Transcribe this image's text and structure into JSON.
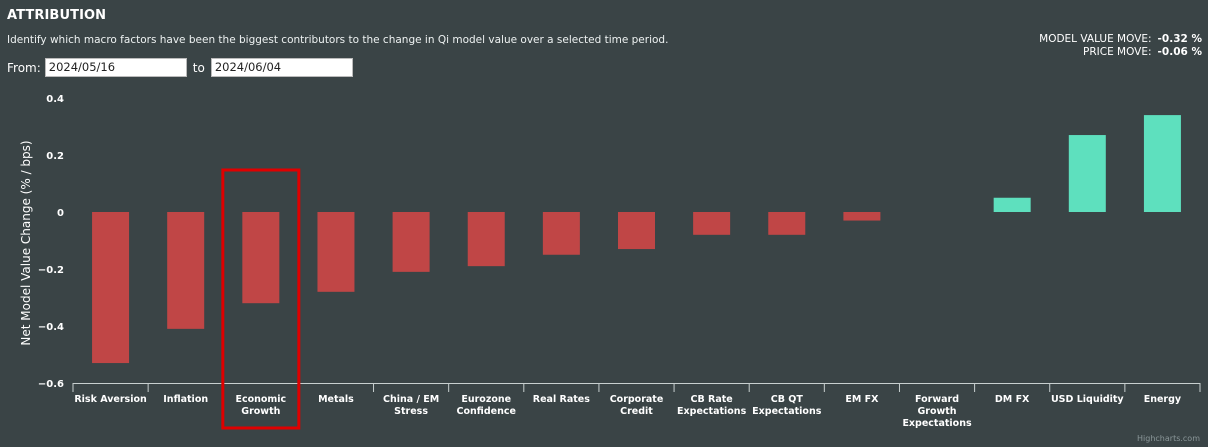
{
  "header": {
    "title": "ATTRIBUTION",
    "subtitle": "Identify which macro factors have been the biggest contributors to the change in Qi model value over a selected time period."
  },
  "moves": {
    "model_value_label": "MODEL VALUE MOVE:",
    "model_value": "-0.32 %",
    "price_label": "PRICE MOVE:",
    "price": "-0.06 %"
  },
  "range": {
    "from_label": "From:",
    "from_value": "2024/05/16",
    "to_label": "to",
    "to_value": "2024/06/04"
  },
  "credit": "Highcharts.com",
  "colors": {
    "negative": "#c04646",
    "positive": "#5ee0be",
    "highlight": "#e00000",
    "background": "#3a4446"
  },
  "chart_data": {
    "type": "bar",
    "title": "",
    "xlabel": "",
    "ylabel": "Net Model Value Change (% / bps)",
    "ylim": [
      -0.6,
      0.4
    ],
    "yticks": [
      0.4,
      0.2,
      0,
      -0.2,
      -0.4,
      -0.6
    ],
    "ytick_labels": [
      "0.4",
      "0.2",
      "0",
      "−0.2",
      "−0.4",
      "−0.6"
    ],
    "grid": false,
    "categories": [
      [
        "Risk Aversion"
      ],
      [
        "Inflation"
      ],
      [
        "Economic",
        "Growth"
      ],
      [
        "Metals"
      ],
      [
        "China / EM",
        "Stress"
      ],
      [
        "Eurozone",
        "Confidence"
      ],
      [
        "Real Rates"
      ],
      [
        "Corporate",
        "Credit"
      ],
      [
        "CB Rate",
        "Expectations"
      ],
      [
        "CB QT",
        "Expectations"
      ],
      [
        "EM FX"
      ],
      [
        "Forward",
        "Growth",
        "Expectations"
      ],
      [
        "DM FX"
      ],
      [
        "USD Liquidity"
      ],
      [
        "Energy"
      ]
    ],
    "values": [
      -0.53,
      -0.41,
      -0.32,
      -0.28,
      -0.21,
      -0.19,
      -0.15,
      -0.13,
      -0.08,
      -0.08,
      -0.03,
      0.0,
      0.05,
      0.27,
      0.34
    ],
    "highlighted_category_index": 2
  }
}
